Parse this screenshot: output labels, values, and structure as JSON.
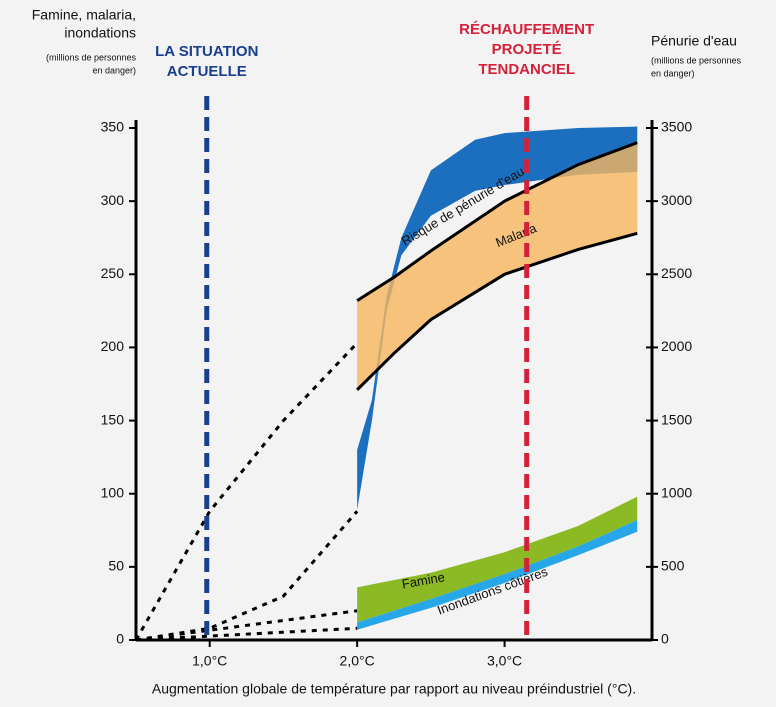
{
  "chart_data": {
    "type": "band",
    "x_label": "Augmentation globale de température par rapport au niveau préindustriel (°C).",
    "y_label": [
      "Famine, malaria,",
      "inondations"
    ],
    "y_sublabel": [
      "(millions de personnes",
      "en danger)"
    ],
    "y2_label": "Pénurie d'eau",
    "y2_sublabel": [
      "(millions de personnes",
      "en danger)"
    ],
    "xlim": [
      0.5,
      4.0
    ],
    "xticks": [
      {
        "value": 1,
        "label": "1,0°C"
      },
      {
        "value": 2,
        "label": "2,0°C"
      },
      {
        "value": 3,
        "label": "3,0°C"
      }
    ],
    "ylim": [
      0,
      350
    ],
    "yticks": [
      0,
      50,
      100,
      150,
      200,
      250,
      300,
      350
    ],
    "y2lim": [
      0,
      3500
    ],
    "y2ticks": [
      0,
      500,
      1000,
      1500,
      2000,
      2500,
      3000,
      3500
    ],
    "series": [
      {
        "name": "Risque de pénurie d'eau",
        "color": "#1c6fbf",
        "axis": "y2",
        "x": [
          2.0,
          2.1,
          2.2,
          2.3,
          2.5,
          2.8,
          3.0,
          3.5,
          3.9
        ],
        "lower": [
          890,
          1500,
          2250,
          2630,
          2900,
          3070,
          3110,
          3180,
          3200
        ],
        "upper": [
          1300,
          1640,
          2350,
          2750,
          3210,
          3420,
          3465,
          3500,
          3510
        ]
      },
      {
        "name": "Malaria",
        "color": "#f8b65e",
        "outline": true,
        "x": [
          2.0,
          2.25,
          2.5,
          3.0,
          3.5,
          3.9
        ],
        "lower": [
          171,
          196,
          219,
          250,
          267,
          278
        ],
        "upper": [
          232,
          248,
          266,
          300,
          325,
          340
        ]
      },
      {
        "name": "Famine",
        "color": "#8cba24",
        "x": [
          2.0,
          2.5,
          3.0,
          3.5,
          3.9
        ],
        "lower": [
          12,
          28,
          45,
          64,
          82
        ],
        "upper": [
          36,
          46,
          60,
          78,
          98
        ]
      },
      {
        "name": "Inondations côtières",
        "color": "#27a7e8",
        "x": [
          2.0,
          2.5,
          3.0,
          3.5,
          3.9
        ],
        "lower": [
          7,
          22,
          39,
          58,
          74
        ],
        "upper": [
          12,
          28,
          45,
          64,
          82
        ]
      }
    ],
    "dotted": [
      {
        "x": [
          0.5,
          1.0,
          1.5,
          2.0
        ],
        "values": [
          0,
          88,
          150,
          203
        ]
      },
      {
        "x": [
          0.5,
          1.0,
          1.5,
          2.0
        ],
        "values": [
          0,
          8,
          30,
          88
        ]
      },
      {
        "x": [
          0.5,
          2.0
        ],
        "values": [
          0,
          20
        ]
      },
      {
        "x": [
          0.5,
          2.0
        ],
        "values": [
          0,
          8
        ]
      }
    ],
    "markers": [
      {
        "label": [
          "LA SITUATION",
          "ACTUELLE"
        ],
        "x": 0.98,
        "color": "#1a3f8f"
      },
      {
        "label": [
          "RÉCHAUFFEMENT",
          "PROJETÉ",
          "TENDANCIEL"
        ],
        "x": 3.15,
        "color": "#d4213a"
      }
    ]
  }
}
